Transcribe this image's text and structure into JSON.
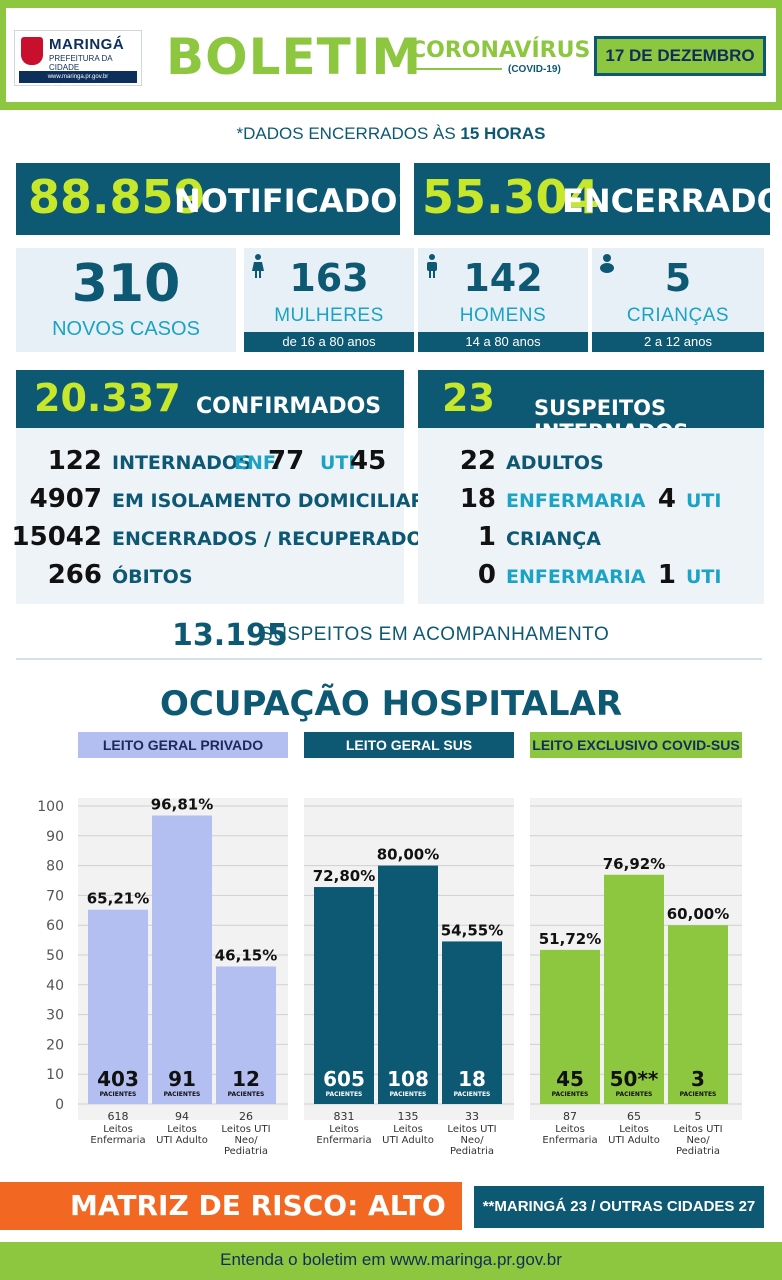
{
  "header": {
    "logo_name": "MARINGÁ",
    "logo_sub": "PREFEITURA DA CIDADE",
    "logo_bar": "www.maringa.pr.gov.br  @prefeiturademaringa",
    "title": "BOLETIM",
    "subtitle": "CORONAVÍRUS",
    "subtitle2": "(COVID-19)",
    "date": "17 DE DEZEMBRO"
  },
  "dados": {
    "prefix": "*DADOS ENCERRADOS ÀS ",
    "time": "15 HORAS"
  },
  "totals": {
    "notificados_value": "88.859",
    "notificados_label": "NOTIFICADOS",
    "encerrados_value": "55.304",
    "encerrados_label": "ENCERRADOS"
  },
  "novos": {
    "value": "310",
    "label": "NOVOS CASOS",
    "mulheres": {
      "value": "163",
      "label": "MULHERES",
      "age": "de 16 a 80 anos"
    },
    "homens": {
      "value": "142",
      "label": "HOMENS",
      "age": "14 a 80 anos"
    },
    "criancas": {
      "value": "5",
      "label": "CRIANÇAS",
      "age": "2 a 12 anos"
    }
  },
  "confirmados": {
    "value": "20.337",
    "label": "CONFIRMADOS",
    "internados": "122",
    "internados_label": "INTERNADOS",
    "enf_label": "ENF.",
    "enf_value": "77",
    "uti_label": "UTI",
    "uti_value": "45",
    "isolamento": "4907",
    "isolamento_label": "EM ISOLAMENTO DOMICILIAR",
    "recuperados": "15042",
    "recuperados_label": "ENCERRADOS / RECUPERADOS",
    "obitos": "266",
    "obitos_label": "ÓBITOS"
  },
  "suspeitos": {
    "value": "23",
    "label": "SUSPEITOS INTERNADOS",
    "adultos": "22",
    "adultos_label": "ADULTOS",
    "adult_enf": "18",
    "adult_enf_label": "ENFERMARIA",
    "adult_uti": "4",
    "adult_uti_label": "UTI",
    "crianca": "1",
    "crianca_label": "CRIANÇA",
    "crianca_enf": "0",
    "crianca_enf_label": "ENFERMARIA",
    "crianca_uti": "1",
    "crianca_uti_label": "UTI"
  },
  "acompanhamento": {
    "value": "13.195",
    "label": "SUSPEITOS EM ACOMPANHAMENTO"
  },
  "ocupacao_title": "OCUPAÇÃO HOSPITALAR",
  "chart_data": {
    "type": "bar",
    "title": "OCUPAÇÃO HOSPITALAR",
    "ylim": [
      0,
      100
    ],
    "yticks": [
      0,
      10,
      20,
      30,
      40,
      50,
      60,
      70,
      80,
      90,
      100
    ],
    "grid": true,
    "patients_label": "PACIENTES",
    "groups": [
      {
        "name": "LEITO GERAL PRIVADO",
        "header_bg": "#b3bff0",
        "header_fg": "#1a2a5a",
        "bar_color": "#b3bff0",
        "bars": [
          {
            "label": "65,21%",
            "value": 65.21,
            "patients": "403",
            "beds": "618",
            "bed_type": "Leitos Enfermaria"
          },
          {
            "label": "96,81%",
            "value": 96.81,
            "patients": "91",
            "beds": "94",
            "bed_type": "Leitos UTI Adulto"
          },
          {
            "label": "46,15%",
            "value": 46.15,
            "patients": "12",
            "beds": "26",
            "bed_type": "Leitos UTI Neo/ Pediatria"
          }
        ]
      },
      {
        "name": "LEITO GERAL SUS",
        "header_bg": "#0d5873",
        "header_fg": "#ffffff",
        "bar_color": "#0d5873",
        "bars": [
          {
            "label": "72,80%",
            "value": 72.8,
            "patients": "605",
            "beds": "831",
            "bed_type": "Leitos Enfermaria"
          },
          {
            "label": "80,00%",
            "value": 80.0,
            "patients": "108",
            "beds": "135",
            "bed_type": "Leitos UTI Adulto"
          },
          {
            "label": "54,55%",
            "value": 54.55,
            "patients": "18",
            "beds": "33",
            "bed_type": "Leitos UTI Neo/ Pediatria"
          }
        ]
      },
      {
        "name": "LEITO EXCLUSIVO COVID-SUS",
        "header_bg": "#8dc63f",
        "header_fg": "#0d2f5c",
        "bar_color": "#8dc63f",
        "bars": [
          {
            "label": "51,72%",
            "value": 51.72,
            "patients": "45",
            "beds": "87",
            "bed_type": "Leitos Enfermaria"
          },
          {
            "label": "76,92%",
            "value": 76.92,
            "patients": "50**",
            "beds": "65",
            "bed_type": "Leitos UTI Adulto"
          },
          {
            "label": "60,00%",
            "value": 60.0,
            "patients": "3",
            "beds": "5",
            "bed_type": "Leitos UTI Neo/ Pediatria"
          }
        ]
      }
    ]
  },
  "matriz": {
    "label": "MATRIZ DE RISCO: ALTO",
    "note": "**MARINGÁ 23 / OUTRAS CIDADES 27"
  },
  "footer": "Entenda o boletim em www.maringa.pr.gov.br"
}
